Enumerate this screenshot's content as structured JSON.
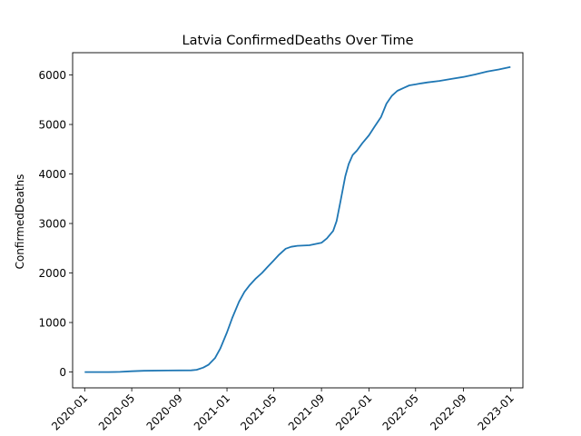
{
  "chart_data": {
    "type": "line",
    "title": "Latvia  ConfirmedDeaths Over Time",
    "xlabel": "",
    "ylabel": "ConfirmedDeaths",
    "xlim": [
      "2019-12-01",
      "2023-02-01"
    ],
    "ylim": [
      -320,
      6450
    ],
    "x_ticks": [
      "2020-01",
      "2020-05",
      "2020-09",
      "2021-01",
      "2021-05",
      "2021-09",
      "2022-01",
      "2022-05",
      "2022-09",
      "2023-01"
    ],
    "y_ticks": [
      0,
      1000,
      2000,
      3000,
      4000,
      5000,
      6000
    ],
    "y_tick_labels": [
      "0",
      "1000",
      "2000",
      "3000",
      "4000",
      "5000",
      "6000"
    ],
    "grid": false,
    "line_color": "#1f77b4",
    "series": [
      {
        "x": [
          "2020-01-01",
          "2020-03-01",
          "2020-04-01",
          "2020-05-01",
          "2020-06-01",
          "2020-08-01",
          "2020-10-01",
          "2020-10-15",
          "2020-11-01",
          "2020-11-15",
          "2020-12-01",
          "2020-12-15",
          "2021-01-01",
          "2021-01-15",
          "2021-02-01",
          "2021-02-15",
          "2021-03-01",
          "2021-03-15",
          "2021-04-01",
          "2021-04-15",
          "2021-05-01",
          "2021-05-15",
          "2021-06-01",
          "2021-06-15",
          "2021-07-01",
          "2021-08-01",
          "2021-09-01",
          "2021-09-15",
          "2021-10-01",
          "2021-10-10",
          "2021-10-20",
          "2021-11-01",
          "2021-11-10",
          "2021-11-20",
          "2021-12-01",
          "2021-12-15",
          "2022-01-01",
          "2022-01-15",
          "2022-02-01",
          "2022-02-15",
          "2022-03-01",
          "2022-03-15",
          "2022-04-01",
          "2022-04-15",
          "2022-05-01",
          "2022-05-15",
          "2022-06-01",
          "2022-07-01",
          "2022-08-01",
          "2022-09-01",
          "2022-10-01",
          "2022-11-01",
          "2022-12-01",
          "2022-12-31"
        ],
        "y": [
          0,
          0,
          3,
          15,
          25,
          30,
          35,
          45,
          90,
          150,
          280,
          480,
          800,
          1100,
          1420,
          1620,
          1760,
          1880,
          2000,
          2120,
          2250,
          2370,
          2490,
          2530,
          2550,
          2560,
          2610,
          2700,
          2850,
          3050,
          3450,
          3950,
          4200,
          4380,
          4470,
          4620,
          4780,
          4950,
          5150,
          5420,
          5580,
          5680,
          5740,
          5790,
          5810,
          5830,
          5850,
          5880,
          5920,
          5960,
          6010,
          6070,
          6110,
          6160
        ]
      }
    ]
  }
}
